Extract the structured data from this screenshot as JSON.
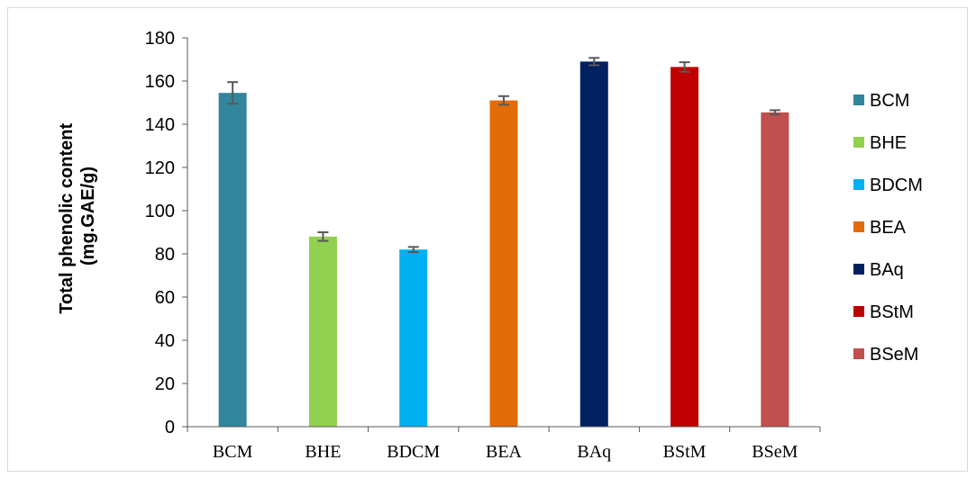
{
  "chart_data": {
    "type": "bar",
    "categories": [
      "BCM",
      "BHE",
      "BDCM",
      "BEA",
      "BAq",
      "BStM",
      "BSeM"
    ],
    "values": [
      154.5,
      88,
      82,
      151,
      169,
      166.5,
      145.5
    ],
    "errors": [
      5,
      2,
      1.2,
      2,
      1.7,
      2.2,
      1
    ],
    "colors": [
      "#31859c",
      "#92d050",
      "#00b0f0",
      "#e36c09",
      "#002060",
      "#c00000",
      "#c0504d"
    ],
    "title": "",
    "xlabel": "",
    "ylabel_line1": "Total phenolic content",
    "ylabel_line2": "(mg.GAE/g)",
    "ylim": [
      0,
      180
    ],
    "yticks": [
      0,
      20,
      40,
      60,
      80,
      100,
      120,
      140,
      160,
      180
    ],
    "grid": false,
    "legend": {
      "placement": "right",
      "entries": [
        "BCM",
        "BHE",
        "BDCM",
        "BEA",
        "BAq",
        "BStM",
        "BSeM"
      ]
    }
  }
}
